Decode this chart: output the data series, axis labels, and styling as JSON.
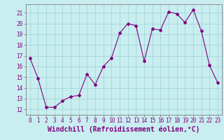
{
  "x": [
    0,
    1,
    2,
    3,
    4,
    5,
    6,
    7,
    8,
    9,
    10,
    11,
    12,
    13,
    14,
    15,
    16,
    17,
    18,
    19,
    20,
    21,
    22,
    23
  ],
  "y": [
    16.8,
    14.9,
    12.2,
    12.2,
    12.8,
    13.2,
    13.3,
    15.3,
    14.3,
    16.0,
    16.8,
    19.1,
    20.0,
    19.8,
    16.5,
    19.5,
    19.4,
    21.1,
    20.9,
    20.1,
    21.3,
    19.3,
    16.1,
    14.5
  ],
  "line_color": "#800080",
  "marker": "D",
  "marker_size": 2,
  "bg_color": "#c8eef0",
  "grid_color": "#a0cfd4",
  "xlabel": "Windchill (Refroidissement éolien,°C)",
  "xlabel_fontsize": 7,
  "ylim": [
    11.5,
    21.8
  ],
  "yticks": [
    12,
    13,
    14,
    15,
    16,
    17,
    18,
    19,
    20,
    21
  ],
  "xticks": [
    0,
    1,
    2,
    3,
    4,
    5,
    6,
    7,
    8,
    9,
    10,
    11,
    12,
    13,
    14,
    15,
    16,
    17,
    18,
    19,
    20,
    21,
    22,
    23
  ],
  "tick_fontsize": 5.5,
  "axis_label_color": "#800080",
  "tick_label_color": "#800080",
  "spine_color": "#808080",
  "linewidth": 0.8
}
